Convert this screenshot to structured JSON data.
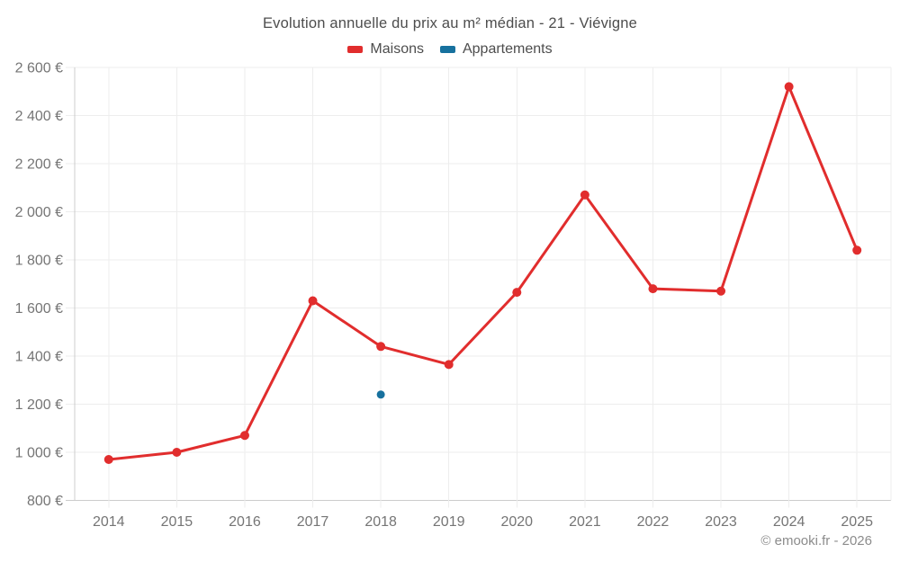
{
  "chart_data": {
    "type": "line",
    "title": "Evolution annuelle du prix au m² médian - 21 - Viévigne",
    "categories": [
      "2014",
      "2015",
      "2016",
      "2017",
      "2018",
      "2019",
      "2020",
      "2021",
      "2022",
      "2023",
      "2024",
      "2025"
    ],
    "series": [
      {
        "name": "Maisons",
        "color": "#e12d2d",
        "values": [
          970,
          1000,
          1070,
          1630,
          1440,
          1365,
          1665,
          2070,
          1680,
          1670,
          2520,
          1840
        ]
      },
      {
        "name": "Appartements",
        "color": "#17719e",
        "values": [
          null,
          null,
          null,
          null,
          1240,
          null,
          null,
          null,
          null,
          null,
          null,
          null
        ]
      }
    ],
    "ylim": [
      800,
      2600
    ],
    "ytick_step": 200,
    "y_unit": "€",
    "grid": true,
    "legend_position": "top",
    "xlabel": "",
    "ylabel": ""
  },
  "footer": {
    "text": "© emooki.fr - 2026"
  }
}
